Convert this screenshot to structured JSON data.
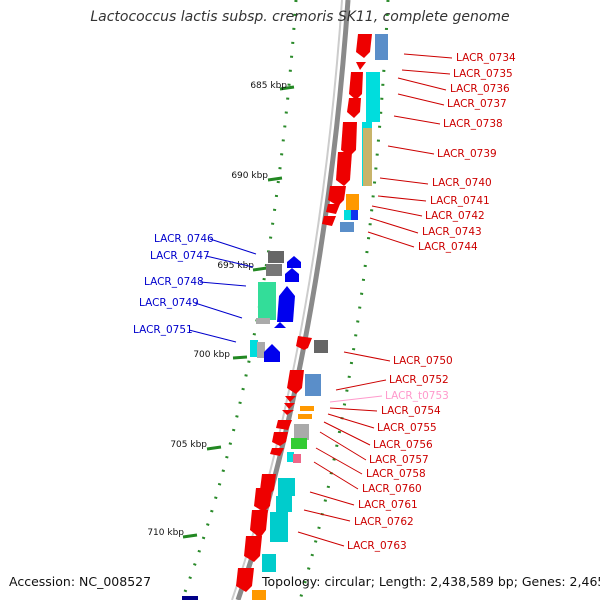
{
  "title": "Lactococcus lactis subsp. cremoris SK11, complete genome",
  "accession": "Accession: NC_008527",
  "topology": "Topology: circular; Length: 2,438,589 bp; Genes: 2,465",
  "colors": {
    "forward_label": "#cc0000",
    "reverse_label": "#0000cc",
    "trna_label": "#ff99cc",
    "backbone": "#888888",
    "tick": "#228822"
  },
  "ruler": [
    {
      "label": "685 kbp"
    },
    {
      "label": "690 kbp"
    },
    {
      "label": "695 kbp"
    },
    {
      "label": "700 kbp"
    },
    {
      "label": "705 kbp"
    },
    {
      "label": "710 kbp"
    }
  ],
  "forward_labels": [
    {
      "text": "LACR_0734"
    },
    {
      "text": "LACR_0735"
    },
    {
      "text": "LACR_0736"
    },
    {
      "text": "LACR_0737"
    },
    {
      "text": "LACR_0738"
    },
    {
      "text": "LACR_0739"
    },
    {
      "text": "LACR_0740"
    },
    {
      "text": "LACR_0741"
    },
    {
      "text": "LACR_0742"
    },
    {
      "text": "LACR_0743"
    },
    {
      "text": "LACR_0744"
    },
    {
      "text": "LACR_0750"
    },
    {
      "text": "LACR_0752"
    },
    {
      "text": "LACR_t0753",
      "trna": true
    },
    {
      "text": "LACR_0754"
    },
    {
      "text": "LACR_0755"
    },
    {
      "text": "LACR_0756"
    },
    {
      "text": "LACR_0757"
    },
    {
      "text": "LACR_0758"
    },
    {
      "text": "LACR_0760"
    },
    {
      "text": "LACR_0761"
    },
    {
      "text": "LACR_0762"
    },
    {
      "text": "LACR_0763"
    }
  ],
  "reverse_labels": [
    {
      "text": "LACR_0746"
    },
    {
      "text": "LACR_0747"
    },
    {
      "text": "LACR_0748"
    },
    {
      "text": "LACR_0749"
    },
    {
      "text": "LACR_0751"
    }
  ]
}
